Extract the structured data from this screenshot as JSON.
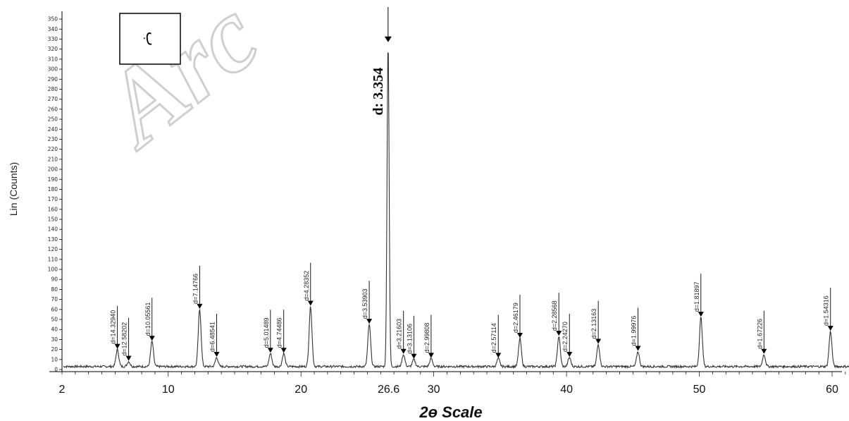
{
  "chart_data": {
    "type": "line",
    "title": "",
    "xlabel": "2ɵ Scale",
    "ylabel": "Lin (Counts)",
    "xlim": [
      2,
      62
    ],
    "ylim": [
      0,
      355
    ],
    "x_ticks": [
      {
        "value": 2,
        "label": "2"
      },
      {
        "value": 10,
        "label": "10"
      },
      {
        "value": 20,
        "label": "20"
      },
      {
        "value": 26.6,
        "label": "26.6"
      },
      {
        "value": 30,
        "label": "30"
      },
      {
        "value": 40,
        "label": "40"
      },
      {
        "value": 50,
        "label": "50"
      },
      {
        "value": 60,
        "label": "60"
      }
    ],
    "y_ticks": [
      0,
      10,
      20,
      30,
      40,
      50,
      60,
      70,
      80,
      90,
      100,
      110,
      120,
      130,
      140,
      150,
      160,
      170,
      180,
      190,
      200,
      210,
      220,
      230,
      240,
      250,
      260,
      270,
      280,
      290,
      300,
      310,
      320,
      330,
      340,
      350
    ],
    "baseline": 3,
    "peaks": [
      {
        "x": 6.17,
        "y": 20,
        "label": "d=14.32940"
      },
      {
        "x": 7.02,
        "y": 8,
        "label": "d=12.58202"
      },
      {
        "x": 8.78,
        "y": 28,
        "label": "d=10.05561"
      },
      {
        "x": 12.37,
        "y": 60,
        "label": "d=7.14766"
      },
      {
        "x": 13.65,
        "y": 12,
        "label": "d=6.48541"
      },
      {
        "x": 17.7,
        "y": 16,
        "label": "d=5.01489"
      },
      {
        "x": 18.7,
        "y": 16,
        "label": "d=4.74486"
      },
      {
        "x": 20.72,
        "y": 63,
        "label": "d=4.28352"
      },
      {
        "x": 25.14,
        "y": 45,
        "label": "d=3.53903"
      },
      {
        "x": 26.56,
        "y": 327,
        "label": "d: 3.354"
      },
      {
        "x": 27.72,
        "y": 15,
        "label": "d=3.21603"
      },
      {
        "x": 28.5,
        "y": 10,
        "label": "d=3.13106"
      },
      {
        "x": 29.8,
        "y": 11,
        "label": "d=2.99808"
      },
      {
        "x": 34.86,
        "y": 11,
        "label": "d=2.57114"
      },
      {
        "x": 36.49,
        "y": 31,
        "label": "d=2.46179"
      },
      {
        "x": 39.42,
        "y": 33,
        "label": "d=2.28568"
      },
      {
        "x": 40.22,
        "y": 12,
        "label": "d=2.24270"
      },
      {
        "x": 42.39,
        "y": 25,
        "label": "d=2.13163"
      },
      {
        "x": 45.38,
        "y": 18,
        "label": "d=1.99976"
      },
      {
        "x": 50.12,
        "y": 52,
        "label": "d=1.81897"
      },
      {
        "x": 54.87,
        "y": 15,
        "label": "d=1.67226"
      },
      {
        "x": 59.88,
        "y": 38,
        "label": "d=1.54316"
      }
    ],
    "grid": false,
    "legend": "none"
  },
  "annotations": {
    "box_letter": "ب",
    "watermark": "Arc"
  },
  "colors": {
    "line": "#333333",
    "axis": "#000000",
    "watermark": "#cfcfcf"
  }
}
